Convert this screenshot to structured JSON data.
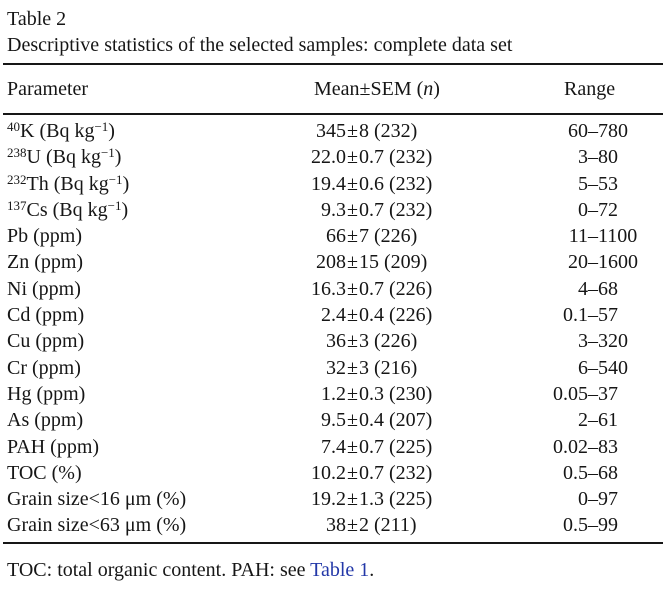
{
  "page": {
    "text_color": "#161616",
    "link_color": "#2338a8",
    "background": "#ffffff"
  },
  "table": {
    "label": "Table 2",
    "caption": "Descriptive statistics of the selected samples: complete data set",
    "columns": {
      "parameter": "Parameter",
      "mean": "Mean±SEM (*n*)",
      "range": "Range"
    },
    "rows": [
      {
        "parameter": "^{40}K (Bq kg^{−1})",
        "mean": "345±8 (232)",
        "range": "60–780"
      },
      {
        "parameter": "^{238}U (Bq kg^{−1})",
        "mean": "22.0±0.7 (232)",
        "range": "3–80"
      },
      {
        "parameter": "^{232}Th (Bq kg^{−1})",
        "mean": "19.4±0.6 (232)",
        "range": "5–53"
      },
      {
        "parameter": "^{137}Cs (Bq kg^{−1})",
        "mean": "9.3±0.7 (232)",
        "range": "0–72"
      },
      {
        "parameter": "Pb (ppm)",
        "mean": "66±7 (226)",
        "range": "11–1100"
      },
      {
        "parameter": "Zn (ppm)",
        "mean": "208±15 (209)",
        "range": "20–1600"
      },
      {
        "parameter": "Ni (ppm)",
        "mean": "16.3±0.7 (226)",
        "range": "4–68"
      },
      {
        "parameter": "Cd (ppm)",
        "mean": "2.4±0.4 (226)",
        "range": "0.1–57"
      },
      {
        "parameter": "Cu (ppm)",
        "mean": "36±3 (226)",
        "range": "3–320"
      },
      {
        "parameter": "Cr (ppm)",
        "mean": "32±3 (216)",
        "range": "6–540"
      },
      {
        "parameter": "Hg (ppm)",
        "mean": "1.2±0.3 (230)",
        "range": "0.05–37"
      },
      {
        "parameter": "As (ppm)",
        "mean": "9.5±0.4 (207)",
        "range": "2–61"
      },
      {
        "parameter": "PAH (ppm)",
        "mean": "7.4±0.7 (225)",
        "range": "0.02–83"
      },
      {
        "parameter": "TOC (%)",
        "mean": "10.2±0.7 (232)",
        "range": "0.5–68"
      },
      {
        "parameter": "Grain size<16 μm (%)",
        "mean": "19.2±1.3 (225)",
        "range": "0–97"
      },
      {
        "parameter": "Grain size<63 μm (%)",
        "mean": "38±2 (211)",
        "range": "0.5–99"
      }
    ],
    "footnote": {
      "prefix": "TOC: total organic content. PAH: see ",
      "link": "Table 1",
      "suffix": "."
    }
  }
}
